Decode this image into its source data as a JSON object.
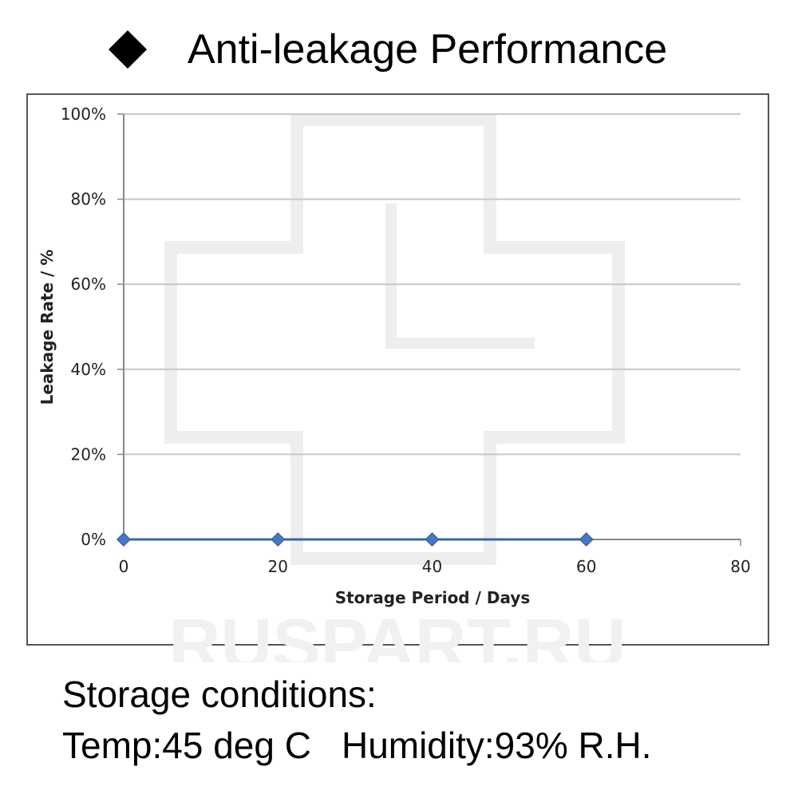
{
  "title": "Anti-leakage Performance",
  "watermark": "RUSPART.RU",
  "conditions": {
    "heading": "Storage conditions:",
    "temp": "Temp:45 deg C",
    "humidity": "Humidity:93% R.H."
  },
  "chart_data": {
    "type": "line",
    "xlabel": "Storage Period / Days",
    "ylabel": "Leakage Rate / %",
    "xlim": [
      0,
      80
    ],
    "ylim": [
      0,
      100
    ],
    "xticks": [
      0,
      20,
      40,
      60,
      80
    ],
    "yticks": [
      0,
      20,
      40,
      60,
      80,
      100
    ],
    "ytick_labels": [
      "0%",
      "20%",
      "40%",
      "60%",
      "80%",
      "100%"
    ],
    "grid": true,
    "series": [
      {
        "x": [
          0,
          20,
          40,
          60
        ],
        "y": [
          0,
          0,
          0,
          0
        ],
        "color": "#3a64a8",
        "marker": "diamond"
      }
    ]
  }
}
